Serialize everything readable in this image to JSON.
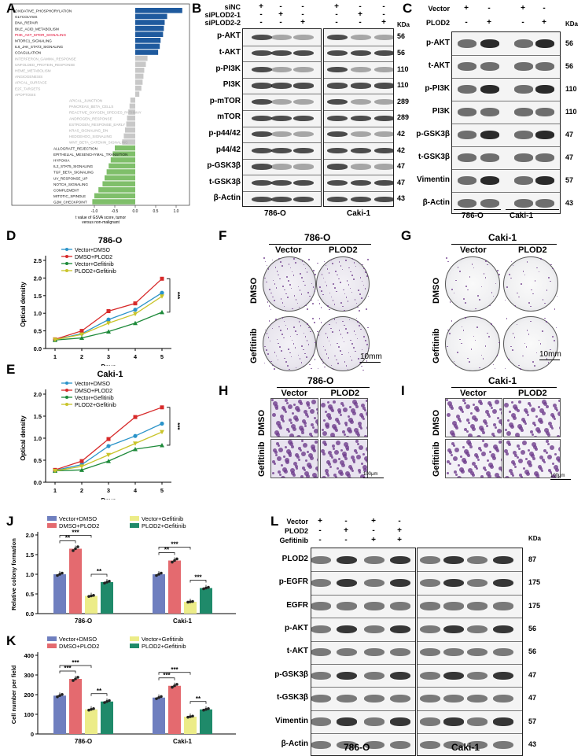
{
  "panels": {
    "A": "A",
    "B": "B",
    "C": "C",
    "D": "D",
    "E": "E",
    "F": "F",
    "G": "G",
    "H": "H",
    "I": "I",
    "J": "J",
    "K": "K",
    "L": "L"
  },
  "panel_a": {
    "pathways": [
      "OXIDATIVE_PHOSPHORYLATION",
      "GLYCOLYSIS",
      "DNA_REPAIR",
      "BILE_ACID_METABOLISM",
      "PI3K_AKT_MTOR_SIGNALING",
      "MTORC1_SIGNALING",
      "IL6_JAK_STAT3_SIGNALING",
      "COAGULATION",
      "INTERFERON_GAMMA_RESPONSE",
      "UNFOLDED_PROTEIN_RESPONSE",
      "HEME_METABOLISM",
      "ANGIOGENESIS",
      "APICAL_SURFACE",
      "E2F_TARGETS",
      "APOPTOSIS",
      "APICAL_JUNCTION",
      "PANCREAS_BETA_CELLS",
      "REACTIVE_OXYGEN_SPECIES_PATHWAY",
      "ANDROGEN_RESPONSE",
      "ESTROGEN_RESPONSE_EARLY",
      "KRAS_SIGNALING_DN",
      "HEDGEHOG_SIGNALING",
      "WNT_BETA_CATENIN_SIGNALING",
      "ALLOGRAFT_REJECTION",
      "EPITHELIAL_MESENCHYMAL_TRANSITION",
      "HYPOXIA",
      "IL2_STAT5_SIGNALING",
      "TGF_BETA_SIGNALING",
      "UV_RESPONSE_UP",
      "NOTCH_SIGNALING",
      "COMPLEMENT",
      "MITOTIC_SPINDLE",
      "G2M_CHECKPOINT"
    ],
    "values": [
      1.15,
      0.78,
      0.72,
      0.7,
      0.68,
      0.62,
      0.6,
      0.56,
      0.3,
      0.26,
      0.22,
      0.2,
      0.18,
      0.15,
      0.1,
      -0.12,
      -0.14,
      -0.17,
      -0.2,
      -0.22,
      -0.25,
      -0.28,
      -0.32,
      -0.5,
      -0.55,
      -0.6,
      -0.65,
      -0.7,
      -0.75,
      -0.8,
      -0.9,
      -1.0,
      -1.05
    ],
    "highlight": "PI3K_AKT_MTOR_SIGNALING",
    "colors": {
      "up": "#1f5a9e",
      "mid": "#c8c8c8",
      "down": "#7fbf6a",
      "highlight": "#e0002a"
    },
    "xticks": [
      "-1.0",
      "-0.5",
      "0.0",
      "0.5",
      "1.0"
    ],
    "xlabel": [
      "t value of GSVA score, tumor",
      "versus non-malignant"
    ]
  },
  "panel_b": {
    "row_labels": [
      "siNC",
      "siPLOD2-1",
      "siPLOD2-2"
    ],
    "signs": [
      [
        "+",
        "-",
        "-",
        "+",
        "-",
        "-"
      ],
      [
        "-",
        "+",
        "-",
        "-",
        "+",
        "-"
      ],
      [
        "-",
        "-",
        "+",
        "-",
        "-",
        "+"
      ]
    ],
    "kda_title": "KDa",
    "proteins": [
      "p-AKT",
      "t-AKT",
      "p-PI3K",
      "PI3K",
      "p-mTOR",
      "mTOR",
      "p-p44/42",
      "p44/42",
      "p-GSK3β",
      "t-GSK3β",
      "β-Actin"
    ],
    "kda": [
      "56",
      "56",
      "110",
      "110",
      "289",
      "289",
      "42",
      "42",
      "47",
      "47",
      "43"
    ],
    "cells": [
      "786-O",
      "Caki-1"
    ]
  },
  "panel_c": {
    "row_labels": [
      "Vector",
      "PLOD2"
    ],
    "signs": [
      [
        "+",
        "-",
        "+",
        "-"
      ],
      [
        "-",
        "+",
        "-",
        "+"
      ]
    ],
    "kda_title": "KDa",
    "proteins": [
      "p-AKT",
      "t-AKT",
      "p-PI3K",
      "PI3K",
      "p-GSK3β",
      "t-GSK3β",
      "Vimentin",
      "β-Actin"
    ],
    "kda": [
      "56",
      "56",
      "110",
      "110",
      "47",
      "47",
      "57",
      "43"
    ],
    "cells": [
      "786-O",
      "Caki-1"
    ]
  },
  "panel_d": {
    "title": "786-O",
    "ylabel": "Optical density",
    "xlabel": "Days",
    "sig": "***"
  },
  "panel_e": {
    "title": "Caki-1",
    "ylabel": "Optical density",
    "xlabel": "Days",
    "sig": "***"
  },
  "chart_data": [
    {
      "type": "line",
      "title": "786-O",
      "xlabel": "Days",
      "ylabel": "Optical density",
      "x": [
        1,
        2,
        3,
        4,
        5
      ],
      "ylim": [
        0,
        2.5
      ],
      "yticks": [
        "0.0",
        "0.5",
        "1.0",
        "1.5",
        "2.0",
        "2.5"
      ],
      "xticks": [
        "1",
        "2",
        "3",
        "4",
        "5"
      ],
      "series": [
        {
          "name": "Vector+DMSO",
          "color": "#2a93c9",
          "marker": "circle",
          "values": [
            0.25,
            0.42,
            0.82,
            1.1,
            1.58
          ]
        },
        {
          "name": "DMSO+PLOD2",
          "color": "#d72a2a",
          "marker": "square",
          "values": [
            0.26,
            0.5,
            1.06,
            1.28,
            1.98
          ]
        },
        {
          "name": "Vector+Gefitinib",
          "color": "#1e8a3a",
          "marker": "triangle",
          "values": [
            0.24,
            0.3,
            0.48,
            0.72,
            1.03
          ]
        },
        {
          "name": "PLOD2+Gefitinib",
          "color": "#c9c42a",
          "marker": "tri-down",
          "values": [
            0.25,
            0.4,
            0.72,
            0.98,
            1.48
          ]
        }
      ]
    },
    {
      "type": "line",
      "title": "Caki-1",
      "xlabel": "Days",
      "ylabel": "Optical density",
      "x": [
        1,
        2,
        3,
        4,
        5
      ],
      "ylim": [
        0,
        2.0
      ],
      "yticks": [
        "0.0",
        "0.5",
        "1.0",
        "1.5",
        "2.0"
      ],
      "xticks": [
        "1",
        "2",
        "3",
        "4",
        "5"
      ],
      "series": [
        {
          "name": "Vector+DMSO",
          "color": "#2a93c9",
          "marker": "circle",
          "values": [
            0.27,
            0.4,
            0.82,
            1.05,
            1.33
          ]
        },
        {
          "name": "DMSO+PLOD2",
          "color": "#d72a2a",
          "marker": "square",
          "values": [
            0.28,
            0.48,
            0.98,
            1.48,
            1.7
          ]
        },
        {
          "name": "Vector+Gefitinib",
          "color": "#1e8a3a",
          "marker": "triangle",
          "values": [
            0.26,
            0.28,
            0.48,
            0.75,
            0.84
          ]
        },
        {
          "name": "PLOD2+Gefitinib",
          "color": "#c9c42a",
          "marker": "tri-down",
          "values": [
            0.26,
            0.36,
            0.62,
            0.88,
            1.14
          ]
        }
      ]
    },
    {
      "type": "bar",
      "ylabel": "Relative colony formation",
      "categories": [
        "786-O",
        "Caki-1"
      ],
      "ylim": [
        0,
        2.0
      ],
      "yticks": [
        "0.0",
        "0.5",
        "1.0",
        "1.5",
        "2.0"
      ],
      "series": [
        {
          "name": "Vector+DMSO",
          "color": "#6f7fbf",
          "values": [
            1.0,
            1.0
          ]
        },
        {
          "name": "DMSO+PLOD2",
          "color": "#e46a6f",
          "values": [
            1.65,
            1.35
          ]
        },
        {
          "name": "Vector+Gefitinib",
          "color": "#ecec88",
          "values": [
            0.45,
            0.3
          ]
        },
        {
          "name": "PLOD2+Gefitinib",
          "color": "#1f8a6a",
          "values": [
            0.8,
            0.65
          ]
        }
      ],
      "annotations": [
        "**",
        "***",
        "**",
        "**",
        "***",
        "***"
      ]
    },
    {
      "type": "bar",
      "ylabel": "Cell number per field",
      "categories": [
        "786-O",
        "Caki-1"
      ],
      "ylim": [
        0,
        400
      ],
      "yticks": [
        "0",
        "100",
        "200",
        "300",
        "400"
      ],
      "series": [
        {
          "name": "Vector+DMSO",
          "color": "#6f7fbf",
          "values": [
            195,
            185
          ]
        },
        {
          "name": "DMSO+PLOD2",
          "color": "#e46a6f",
          "values": [
            280,
            245
          ]
        },
        {
          "name": "Vector+Gefitinib",
          "color": "#ecec88",
          "values": [
            125,
            88
          ]
        },
        {
          "name": "PLOD2+Gefitinib",
          "color": "#1f8a6a",
          "values": [
            165,
            125
          ]
        }
      ],
      "annotations": [
        "***",
        "***",
        "**",
        "***",
        "***",
        "**"
      ]
    }
  ],
  "panel_f": {
    "cell": "786-O",
    "cols": [
      "Vector",
      "PLOD2"
    ],
    "rows": [
      "DMSO",
      "Gefitinib"
    ],
    "scale": "10mm"
  },
  "panel_g": {
    "cell": "Caki-1",
    "cols": [
      "Vector",
      "PLOD2"
    ],
    "rows": [
      "DMSO",
      "Gefitinib"
    ],
    "scale": "10mm"
  },
  "panel_h": {
    "cell": "786-O",
    "cols": [
      "Vector",
      "PLOD2"
    ],
    "rows": [
      "DMSO",
      "Gefitinib"
    ],
    "scale": "100μm"
  },
  "panel_i": {
    "cell": "Caki-1",
    "cols": [
      "Vector",
      "PLOD2"
    ],
    "rows": [
      "DMSO",
      "Gefitinib"
    ],
    "scale": "100μm"
  },
  "panel_l": {
    "row_labels": [
      "Vector",
      "PLOD2",
      "Gefitinib"
    ],
    "signs": [
      [
        "+",
        "-",
        "+",
        "-"
      ],
      [
        "-",
        "+",
        "-",
        "+"
      ],
      [
        "-",
        "-",
        "+",
        "+"
      ]
    ],
    "kda_title": "KDa",
    "proteins": [
      "PLOD2",
      "p-EGFR",
      "EGFR",
      "p-AKT",
      "t-AKT",
      "p-GSK3β",
      "t-GSK3β",
      "Vimentin",
      "β-Actin"
    ],
    "kda": [
      "87",
      "175",
      "175",
      "56",
      "56",
      "47",
      "47",
      "57",
      "43"
    ],
    "cells": [
      "786-O",
      "Caki-1"
    ]
  }
}
